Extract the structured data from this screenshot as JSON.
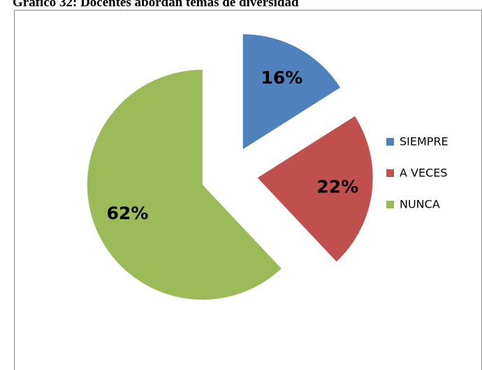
{
  "chart_data": {
    "type": "pie",
    "title": "Gráfico 32: Docentes abordan temas de diversidad",
    "categories": [
      "SIEMPRE",
      "A VECES",
      "NUNCA"
    ],
    "values": [
      16,
      22,
      62
    ],
    "value_labels": [
      "16%",
      "22%",
      "62%"
    ],
    "colors": [
      "#4F81BD",
      "#C0504D",
      "#9BBB59"
    ],
    "legend": "right"
  }
}
